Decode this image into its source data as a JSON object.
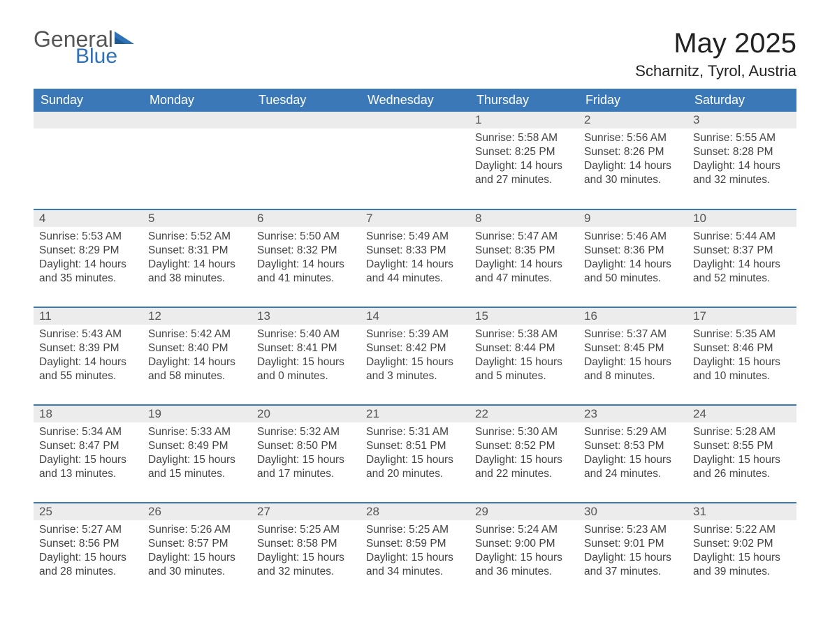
{
  "logo": {
    "word1": "General",
    "word2": "Blue"
  },
  "title": "May 2025",
  "location": "Scharnitz, Tyrol, Austria",
  "colors": {
    "header_bg": "#3b78b8",
    "header_text": "#ffffff",
    "daynum_bg": "#ececec",
    "rule": "#3b78b8",
    "logo_blue": "#2f71b6"
  },
  "weekdays": [
    "Sunday",
    "Monday",
    "Tuesday",
    "Wednesday",
    "Thursday",
    "Friday",
    "Saturday"
  ],
  "weeks": [
    [
      null,
      null,
      null,
      null,
      {
        "n": "1",
        "sunrise": "5:58 AM",
        "sunset": "8:25 PM",
        "day": "14 hours and 27 minutes."
      },
      {
        "n": "2",
        "sunrise": "5:56 AM",
        "sunset": "8:26 PM",
        "day": "14 hours and 30 minutes."
      },
      {
        "n": "3",
        "sunrise": "5:55 AM",
        "sunset": "8:28 PM",
        "day": "14 hours and 32 minutes."
      }
    ],
    [
      {
        "n": "4",
        "sunrise": "5:53 AM",
        "sunset": "8:29 PM",
        "day": "14 hours and 35 minutes."
      },
      {
        "n": "5",
        "sunrise": "5:52 AM",
        "sunset": "8:31 PM",
        "day": "14 hours and 38 minutes."
      },
      {
        "n": "6",
        "sunrise": "5:50 AM",
        "sunset": "8:32 PM",
        "day": "14 hours and 41 minutes."
      },
      {
        "n": "7",
        "sunrise": "5:49 AM",
        "sunset": "8:33 PM",
        "day": "14 hours and 44 minutes."
      },
      {
        "n": "8",
        "sunrise": "5:47 AM",
        "sunset": "8:35 PM",
        "day": "14 hours and 47 minutes."
      },
      {
        "n": "9",
        "sunrise": "5:46 AM",
        "sunset": "8:36 PM",
        "day": "14 hours and 50 minutes."
      },
      {
        "n": "10",
        "sunrise": "5:44 AM",
        "sunset": "8:37 PM",
        "day": "14 hours and 52 minutes."
      }
    ],
    [
      {
        "n": "11",
        "sunrise": "5:43 AM",
        "sunset": "8:39 PM",
        "day": "14 hours and 55 minutes."
      },
      {
        "n": "12",
        "sunrise": "5:42 AM",
        "sunset": "8:40 PM",
        "day": "14 hours and 58 minutes."
      },
      {
        "n": "13",
        "sunrise": "5:40 AM",
        "sunset": "8:41 PM",
        "day": "15 hours and 0 minutes."
      },
      {
        "n": "14",
        "sunrise": "5:39 AM",
        "sunset": "8:42 PM",
        "day": "15 hours and 3 minutes."
      },
      {
        "n": "15",
        "sunrise": "5:38 AM",
        "sunset": "8:44 PM",
        "day": "15 hours and 5 minutes."
      },
      {
        "n": "16",
        "sunrise": "5:37 AM",
        "sunset": "8:45 PM",
        "day": "15 hours and 8 minutes."
      },
      {
        "n": "17",
        "sunrise": "5:35 AM",
        "sunset": "8:46 PM",
        "day": "15 hours and 10 minutes."
      }
    ],
    [
      {
        "n": "18",
        "sunrise": "5:34 AM",
        "sunset": "8:47 PM",
        "day": "15 hours and 13 minutes."
      },
      {
        "n": "19",
        "sunrise": "5:33 AM",
        "sunset": "8:49 PM",
        "day": "15 hours and 15 minutes."
      },
      {
        "n": "20",
        "sunrise": "5:32 AM",
        "sunset": "8:50 PM",
        "day": "15 hours and 17 minutes."
      },
      {
        "n": "21",
        "sunrise": "5:31 AM",
        "sunset": "8:51 PM",
        "day": "15 hours and 20 minutes."
      },
      {
        "n": "22",
        "sunrise": "5:30 AM",
        "sunset": "8:52 PM",
        "day": "15 hours and 22 minutes."
      },
      {
        "n": "23",
        "sunrise": "5:29 AM",
        "sunset": "8:53 PM",
        "day": "15 hours and 24 minutes."
      },
      {
        "n": "24",
        "sunrise": "5:28 AM",
        "sunset": "8:55 PM",
        "day": "15 hours and 26 minutes."
      }
    ],
    [
      {
        "n": "25",
        "sunrise": "5:27 AM",
        "sunset": "8:56 PM",
        "day": "15 hours and 28 minutes."
      },
      {
        "n": "26",
        "sunrise": "5:26 AM",
        "sunset": "8:57 PM",
        "day": "15 hours and 30 minutes."
      },
      {
        "n": "27",
        "sunrise": "5:25 AM",
        "sunset": "8:58 PM",
        "day": "15 hours and 32 minutes."
      },
      {
        "n": "28",
        "sunrise": "5:25 AM",
        "sunset": "8:59 PM",
        "day": "15 hours and 34 minutes."
      },
      {
        "n": "29",
        "sunrise": "5:24 AM",
        "sunset": "9:00 PM",
        "day": "15 hours and 36 minutes."
      },
      {
        "n": "30",
        "sunrise": "5:23 AM",
        "sunset": "9:01 PM",
        "day": "15 hours and 37 minutes."
      },
      {
        "n": "31",
        "sunrise": "5:22 AM",
        "sunset": "9:02 PM",
        "day": "15 hours and 39 minutes."
      }
    ]
  ],
  "labels": {
    "sunrise": "Sunrise: ",
    "sunset": "Sunset: ",
    "daylight": "Daylight: "
  }
}
